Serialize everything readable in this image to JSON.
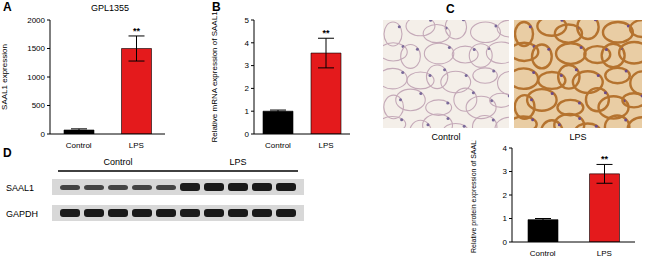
{
  "chart_data": [
    {
      "type": "bar",
      "title": "GPL1355",
      "ylabel": "SAAL1 expression",
      "categories": [
        "Control",
        "LPS"
      ],
      "values": [
        70,
        1500
      ],
      "errors": [
        20,
        220
      ],
      "colors": [
        "#000000",
        "#e41a1c"
      ],
      "ylim": [
        0,
        2000
      ],
      "yticks": [
        0,
        500,
        1000,
        1500,
        2000
      ],
      "significance": [
        null,
        "**"
      ]
    },
    {
      "type": "bar",
      "ylabel": "Relative mRNA expression of SAAL1",
      "categories": [
        "Control",
        "LPS"
      ],
      "values": [
        1,
        3.55
      ],
      "errors": [
        0.05,
        0.65
      ],
      "colors": [
        "#000000",
        "#e41a1c"
      ],
      "ylim": [
        0,
        5
      ],
      "yticks": [
        0,
        1,
        2,
        3,
        4,
        5
      ],
      "significance": [
        null,
        "**"
      ]
    },
    {
      "type": "bar",
      "ylabel": "Relative protein expression of SAAL1",
      "categories": [
        "Control",
        "LPS"
      ],
      "values": [
        0.95,
        2.9
      ],
      "errors": [
        0.05,
        0.4
      ],
      "colors": [
        "#000000",
        "#e41a1c"
      ],
      "ylim": [
        0,
        4
      ],
      "yticks": [
        0,
        1,
        2,
        3,
        4
      ],
      "significance": [
        null,
        "**"
      ]
    }
  ],
  "figure": {
    "panel_labels": [
      "A",
      "B",
      "C",
      "D"
    ],
    "image_panel": {
      "labels": [
        "Control",
        "LPS"
      ]
    },
    "blot": {
      "groups": [
        "Control",
        "LPS"
      ],
      "rows": [
        "SAAL1",
        "GAPDH"
      ]
    }
  }
}
